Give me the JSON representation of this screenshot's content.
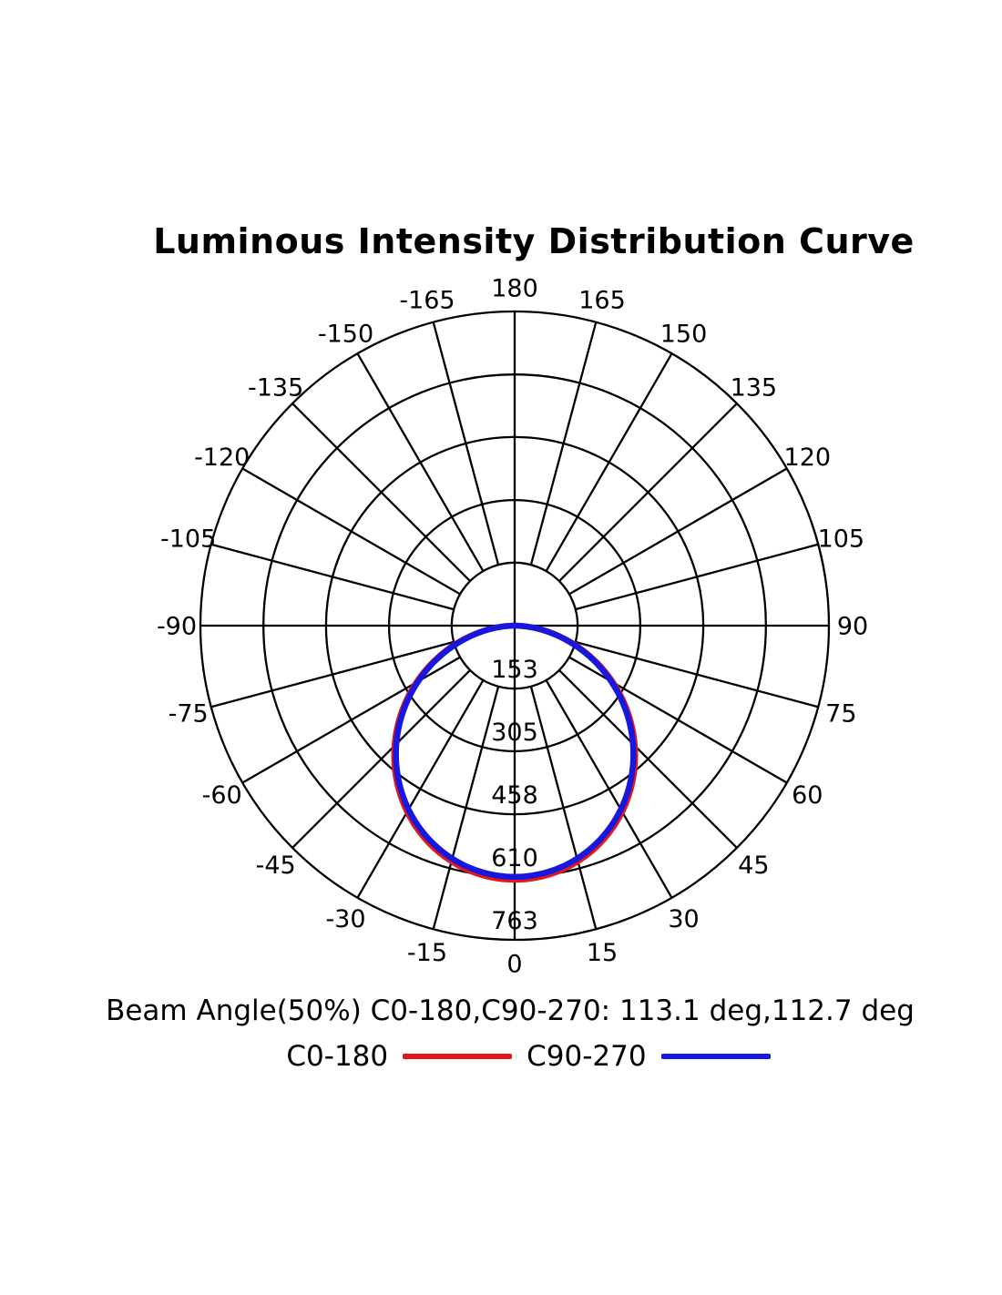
{
  "chart": {
    "title": "Luminous Intensity Distribution Curve"
  },
  "footer": {
    "beam_angle_text": "Beam Angle(50%) C0-180,C90-270: 113.1 deg,112.7 deg"
  },
  "chart_data": {
    "type": "line",
    "subtype": "polar",
    "title": "Luminous Intensity Distribution Curve",
    "angle_unit": "deg",
    "zero_location": "bottom",
    "positive_direction": "right",
    "grid": true,
    "angle_ticks": [
      -165,
      -150,
      -135,
      -120,
      -105,
      -90,
      -75,
      -60,
      -45,
      -30,
      -15,
      0,
      15,
      30,
      45,
      60,
      75,
      90,
      105,
      120,
      135,
      150,
      165,
      180
    ],
    "angle_tick_step_deg": 15,
    "radial_ticks": [
      153,
      305,
      458,
      610,
      763
    ],
    "radial_max": 763,
    "grid_color": "#000000",
    "annotation": "Beam Angle(50%) C0-180,C90-270: 113.1 deg,112.7 deg",
    "beam_angles_50pct_deg": {
      "C0-180": 113.1,
      "C90-270": 112.7
    },
    "series": [
      {
        "name": "C0-180",
        "color": "#e01a1c",
        "beam_angle_50pct_deg": 113.1,
        "peak_intensity": 617,
        "model": {
          "type": "cos_power",
          "exponent": 1.1625,
          "valid_range_deg": [
            -90,
            90
          ]
        },
        "angles_deg": [
          -90,
          -75,
          -60,
          -45,
          -30,
          -15,
          0,
          15,
          30,
          45,
          60,
          75,
          90
        ],
        "values": [
          0,
          128,
          276,
          412,
          522,
          593,
          617,
          593,
          522,
          412,
          276,
          128,
          0
        ]
      },
      {
        "name": "C90-270",
        "color": "#1717dd",
        "beam_angle_50pct_deg": 112.7,
        "peak_intensity": 610,
        "model": {
          "type": "cos_power",
          "exponent": 1.1736,
          "valid_range_deg": [
            -90,
            90
          ]
        },
        "angles_deg": [
          -90,
          -75,
          -60,
          -45,
          -30,
          -15,
          0,
          15,
          30,
          45,
          60,
          75,
          90
        ],
        "values": [
          0,
          125,
          270,
          406,
          515,
          586,
          610,
          586,
          515,
          406,
          270,
          125,
          0
        ]
      }
    ],
    "legend": {
      "position": "bottom",
      "items": [
        {
          "label": "C0-180",
          "color": "#e01a1c"
        },
        {
          "label": "C90-270",
          "color": "#1717dd"
        }
      ]
    }
  }
}
